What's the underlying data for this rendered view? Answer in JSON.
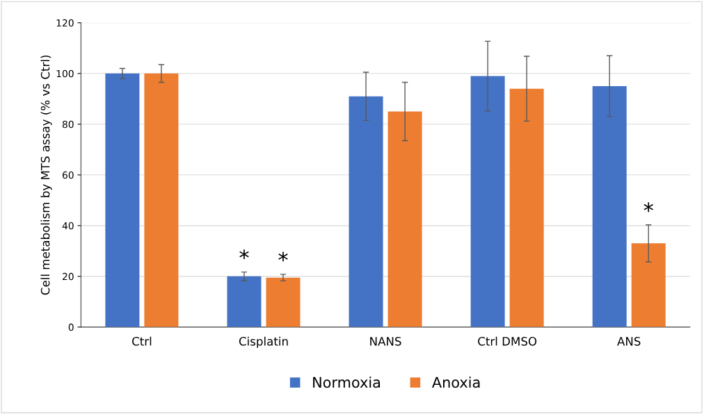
{
  "chart_data": {
    "type": "bar",
    "ylabel": "Cell metabolism by MTS assay (% vs Ctrl)",
    "categories": [
      "Ctrl",
      "Cisplatin",
      "NANS",
      "Ctrl DMSO",
      "ANS"
    ],
    "series": [
      {
        "name": "Normoxia",
        "color": "#4472c4",
        "values": [
          100,
          20,
          91,
          99,
          95
        ],
        "errors": [
          2,
          1.7,
          9.5,
          13.7,
          12
        ]
      },
      {
        "name": "Anoxia",
        "color": "#ed7d31",
        "values": [
          100,
          19.5,
          85,
          94,
          33
        ],
        "errors": [
          3.5,
          1.3,
          11.5,
          12.8,
          7.3
        ]
      }
    ],
    "ylim": [
      0,
      120
    ],
    "yticks": [
      0,
      20,
      40,
      60,
      80,
      100,
      120
    ],
    "grid": "y",
    "legend": "bottom",
    "annotations": [
      "*",
      "*",
      "*"
    ]
  }
}
